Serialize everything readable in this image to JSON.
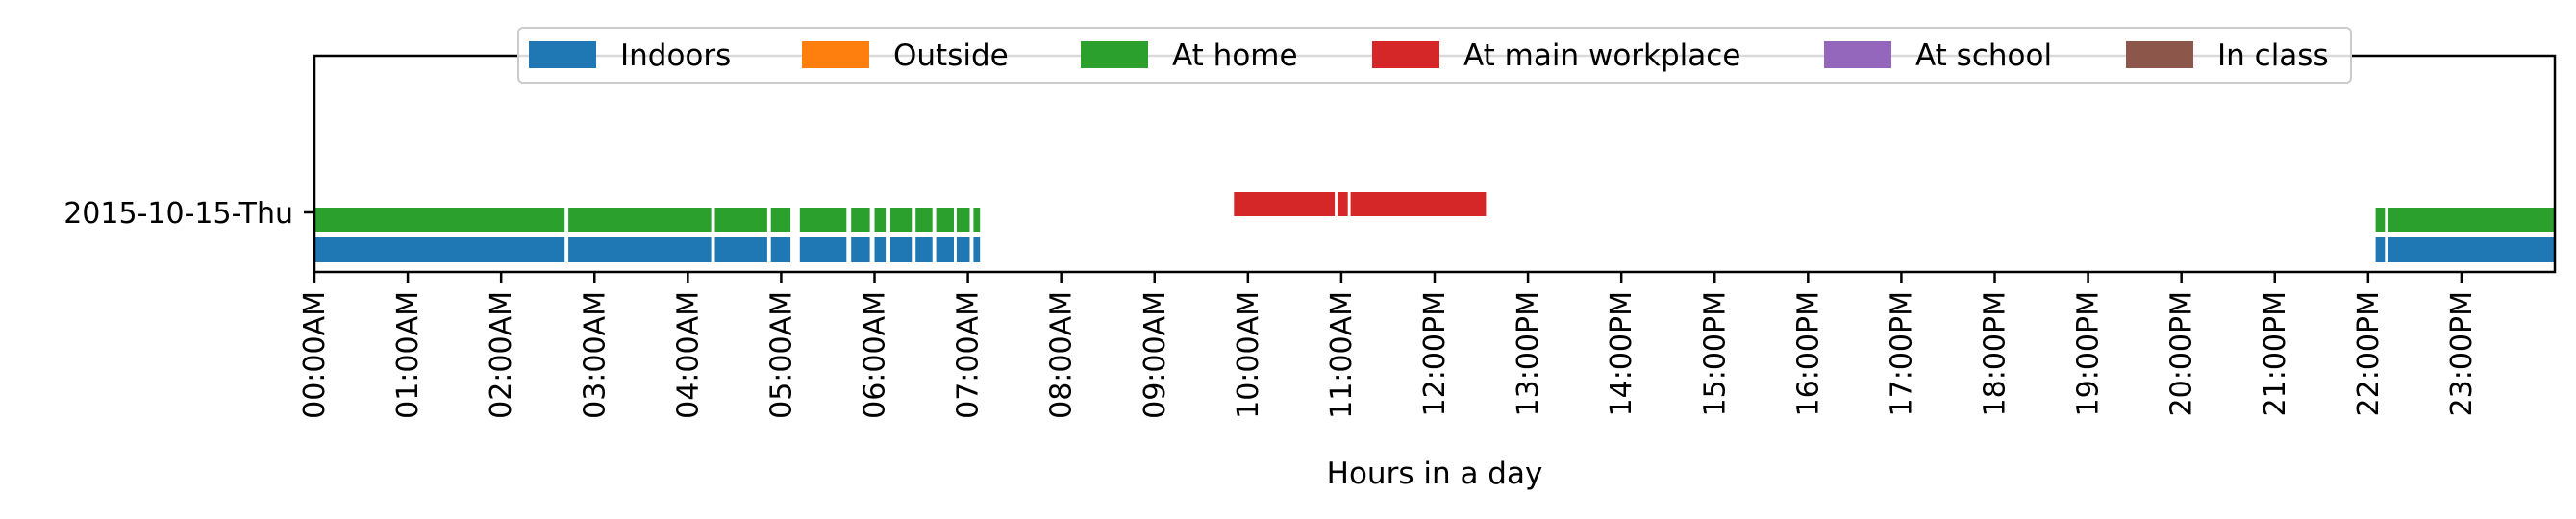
{
  "chart_data": {
    "type": "timeline",
    "xlabel": "Hours in a day",
    "xlim": [
      0,
      24
    ],
    "x_ticks": [
      "00:00AM",
      "01:00AM",
      "02:00AM",
      "03:00AM",
      "04:00AM",
      "05:00AM",
      "06:00AM",
      "07:00AM",
      "08:00AM",
      "09:00AM",
      "10:00AM",
      "11:00AM",
      "12:00PM",
      "13:00PM",
      "14:00PM",
      "15:00PM",
      "16:00PM",
      "17:00PM",
      "18:00PM",
      "19:00PM",
      "20:00PM",
      "21:00PM",
      "22:00PM",
      "23:00PM"
    ],
    "y_categories": [
      "2015-10-15-Thu"
    ],
    "legend": [
      {
        "label": "Indoors",
        "color": "#1f77b4"
      },
      {
        "label": "Outside",
        "color": "#ff7f0e"
      },
      {
        "label": "At home",
        "color": "#2ca02c"
      },
      {
        "label": "At main workplace",
        "color": "#d62728"
      },
      {
        "label": "At school",
        "color": "#9467bd"
      },
      {
        "label": "In class",
        "color": "#8c564b"
      }
    ],
    "legend_position": "top-center",
    "series": [
      {
        "name": "Indoors",
        "color": "#1f77b4",
        "intervals": [
          [
            0,
            2.68
          ],
          [
            2.72,
            4.25
          ],
          [
            4.29,
            4.85
          ],
          [
            4.89,
            5.1
          ],
          [
            5.2,
            5.7
          ],
          [
            5.75,
            5.95
          ],
          [
            6.0,
            6.12
          ],
          [
            6.17,
            6.4
          ],
          [
            6.44,
            6.62
          ],
          [
            6.66,
            6.85
          ],
          [
            6.88,
            7.02
          ],
          [
            7.06,
            7.13
          ],
          [
            22.08,
            22.18
          ],
          [
            22.21,
            24
          ]
        ]
      },
      {
        "name": "At home",
        "color": "#2ca02c",
        "intervals": [
          [
            0,
            2.68
          ],
          [
            2.72,
            4.25
          ],
          [
            4.29,
            4.85
          ],
          [
            4.89,
            5.1
          ],
          [
            5.2,
            5.7
          ],
          [
            5.75,
            5.95
          ],
          [
            6.0,
            6.12
          ],
          [
            6.17,
            6.4
          ],
          [
            6.44,
            6.62
          ],
          [
            6.66,
            6.85
          ],
          [
            6.88,
            7.02
          ],
          [
            7.06,
            7.13
          ],
          [
            22.08,
            22.18
          ],
          [
            22.21,
            24
          ]
        ]
      },
      {
        "name": "At main workplace",
        "color": "#d62728",
        "intervals": [
          [
            9.85,
            10.93
          ],
          [
            10.96,
            11.07
          ],
          [
            11.1,
            12.55
          ]
        ]
      }
    ]
  }
}
